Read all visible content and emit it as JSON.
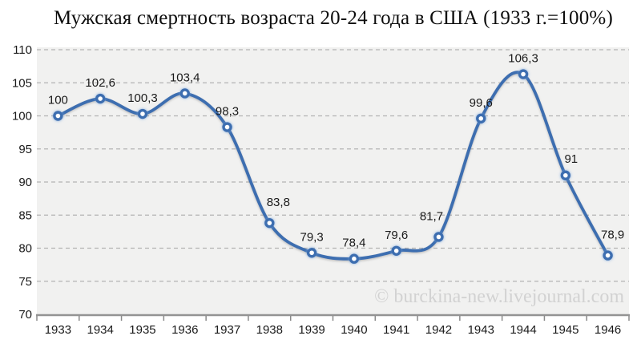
{
  "chart_data": {
    "type": "line",
    "title": "Мужская смертность возраста 20-24 года в США (1933 г.=100%)",
    "categories": [
      "1933",
      "1934",
      "1935",
      "1936",
      "1937",
      "1938",
      "1939",
      "1940",
      "1941",
      "1942",
      "1943",
      "1944",
      "1945",
      "1946"
    ],
    "values": [
      100,
      102.6,
      100.3,
      103.4,
      98.3,
      83.8,
      79.3,
      78.4,
      79.6,
      81.7,
      99.6,
      106.3,
      91,
      78.9
    ],
    "point_labels": [
      "100",
      "102,6",
      "100,3",
      "103,4",
      "98,3",
      "83,8",
      "79,3",
      "78,4",
      "79,6",
      "81,7",
      "99,6",
      "106,3",
      "91",
      "78,9"
    ],
    "xlabel": "",
    "ylabel": "",
    "ylim": [
      70,
      110
    ],
    "ytick_step": 5,
    "ytick_labels": [
      "70",
      "75",
      "80",
      "85",
      "90",
      "95",
      "100",
      "105",
      "110"
    ],
    "grid": "horizontal-dashed",
    "legend": "none",
    "smoothed": true,
    "watermark": "© burckina-new.livejournal.com",
    "colors": {
      "series": "#3E6EB0",
      "plot_background": "#F1F1F0",
      "gridline": "#B3B3B3",
      "axis_line": "#939393",
      "tick_mark": "#8A8A8A",
      "text": "#1A1A1A",
      "watermark": "#D2D2D2",
      "marker_fill": "#FFFFFF"
    },
    "label_offsets": {
      "5": [
        11,
        -6
      ],
      "9": [
        -9,
        -6
      ],
      "12": [
        7,
        -1
      ],
      "13": [
        6,
        -6
      ]
    }
  }
}
